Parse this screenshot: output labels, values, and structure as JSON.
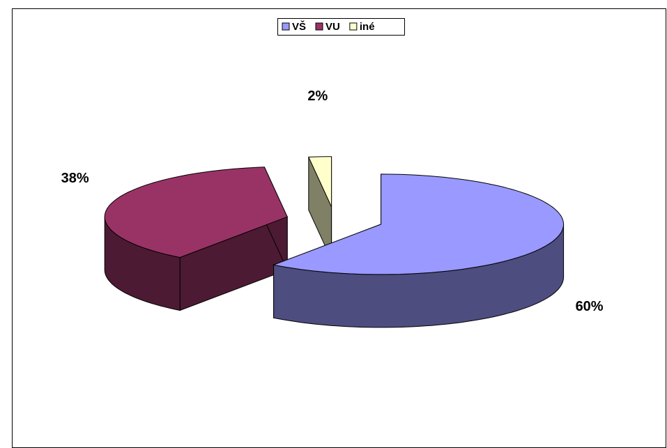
{
  "chart_data": {
    "type": "pie3d",
    "categories": [
      "VŠ",
      "VU",
      "iné"
    ],
    "values": [
      60,
      38,
      2
    ],
    "value_labels": [
      "60%",
      "38%",
      "2%"
    ],
    "colors": [
      "#9999ff",
      "#993366",
      "#ffffcc"
    ],
    "legend": "top"
  }
}
